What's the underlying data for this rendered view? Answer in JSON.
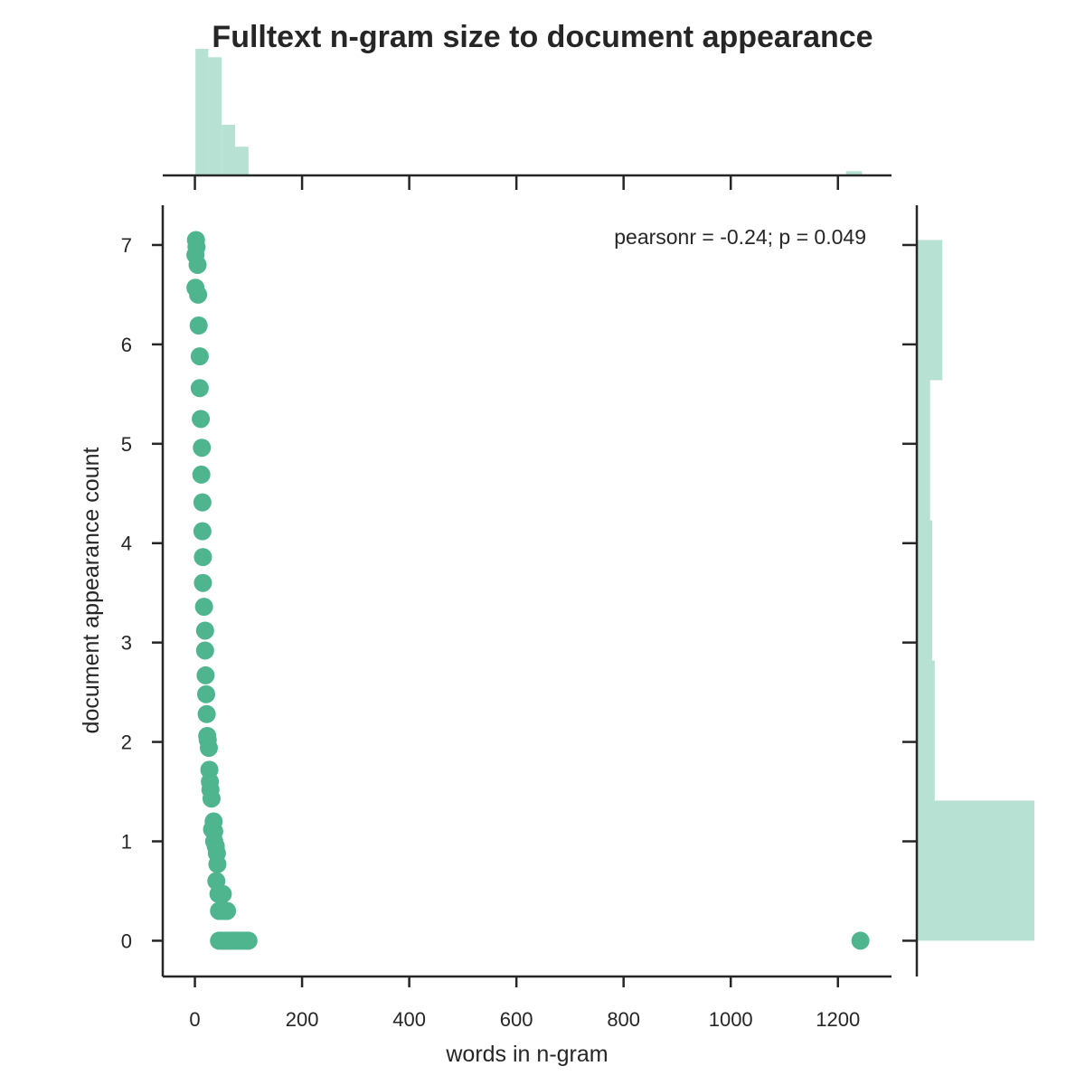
{
  "chart_data": {
    "type": "scatter",
    "title": "Fulltext n-gram size to document appearance",
    "xlabel": "words in n-gram",
    "ylabel": "document appearance count",
    "xlim": [
      -60,
      1300
    ],
    "ylim": [
      -0.36,
      7.4
    ],
    "xticks": [
      0,
      200,
      400,
      600,
      800,
      1000,
      1200
    ],
    "yticks": [
      0,
      1,
      2,
      3,
      4,
      5,
      6,
      7
    ],
    "annotation": "pearsonr = -0.24; p = 0.049",
    "color": "#4fb58f",
    "hist_color": "#b7e1d3",
    "grid": false,
    "marginal_histograms": true,
    "points": [
      {
        "x": 2,
        "y": 7.05
      },
      {
        "x": 3,
        "y": 6.98
      },
      {
        "x": 1,
        "y": 6.9
      },
      {
        "x": 5,
        "y": 6.8
      },
      {
        "x": 1,
        "y": 6.57
      },
      {
        "x": 6,
        "y": 6.5
      },
      {
        "x": 7,
        "y": 6.19
      },
      {
        "x": 9,
        "y": 5.88
      },
      {
        "x": 9,
        "y": 5.56
      },
      {
        "x": 11,
        "y": 5.25
      },
      {
        "x": 13,
        "y": 4.96
      },
      {
        "x": 12,
        "y": 4.69
      },
      {
        "x": 14,
        "y": 4.41
      },
      {
        "x": 14,
        "y": 4.12
      },
      {
        "x": 15,
        "y": 3.86
      },
      {
        "x": 15,
        "y": 3.6
      },
      {
        "x": 17,
        "y": 3.36
      },
      {
        "x": 19,
        "y": 3.12
      },
      {
        "x": 19,
        "y": 2.92
      },
      {
        "x": 20,
        "y": 2.67
      },
      {
        "x": 21,
        "y": 2.48
      },
      {
        "x": 22,
        "y": 2.28
      },
      {
        "x": 23,
        "y": 2.06
      },
      {
        "x": 24,
        "y": 2.02
      },
      {
        "x": 26,
        "y": 1.94
      },
      {
        "x": 27,
        "y": 1.72
      },
      {
        "x": 28,
        "y": 1.6
      },
      {
        "x": 29,
        "y": 1.52
      },
      {
        "x": 31,
        "y": 1.43
      },
      {
        "x": 35,
        "y": 1.2
      },
      {
        "x": 32,
        "y": 1.12
      },
      {
        "x": 36,
        "y": 1.1
      },
      {
        "x": 36,
        "y": 1.0
      },
      {
        "x": 39,
        "y": 0.95
      },
      {
        "x": 41,
        "y": 0.88
      },
      {
        "x": 42,
        "y": 0.77
      },
      {
        "x": 40,
        "y": 0.6
      },
      {
        "x": 44,
        "y": 0.47
      },
      {
        "x": 52,
        "y": 0.47
      },
      {
        "x": 45,
        "y": 0.3
      },
      {
        "x": 53,
        "y": 0.3
      },
      {
        "x": 60,
        "y": 0.3
      },
      {
        "x": 45,
        "y": 0.0
      },
      {
        "x": 50,
        "y": 0.0
      },
      {
        "x": 55,
        "y": 0.0
      },
      {
        "x": 60,
        "y": 0.0
      },
      {
        "x": 65,
        "y": 0.0
      },
      {
        "x": 70,
        "y": 0.0
      },
      {
        "x": 75,
        "y": 0.0
      },
      {
        "x": 80,
        "y": 0.0
      },
      {
        "x": 85,
        "y": 0.0
      },
      {
        "x": 90,
        "y": 0.0
      },
      {
        "x": 95,
        "y": 0.0
      },
      {
        "x": 100,
        "y": 0.0
      },
      {
        "x": 1242,
        "y": 0.0
      }
    ],
    "x_histogram": {
      "bins": [
        {
          "x0": 1,
          "x1": 25,
          "count": 15
        },
        {
          "x0": 25,
          "x1": 50,
          "count": 14
        },
        {
          "x0": 50,
          "x1": 75,
          "count": 6
        },
        {
          "x0": 75,
          "x1": 100,
          "count": 3.4
        },
        {
          "x0": 1215,
          "x1": 1245,
          "count": 0.5
        }
      ]
    },
    "y_histogram": {
      "bins": [
        {
          "y0": 0.0,
          "y1": 1.41,
          "count": 23
        },
        {
          "y0": 1.41,
          "y1": 2.82,
          "count": 3.5
        },
        {
          "y0": 2.82,
          "y1": 4.23,
          "count": 3.0
        },
        {
          "y0": 4.23,
          "y1": 5.64,
          "count": 2.6
        },
        {
          "y0": 5.64,
          "y1": 7.05,
          "count": 5.0
        }
      ]
    }
  }
}
